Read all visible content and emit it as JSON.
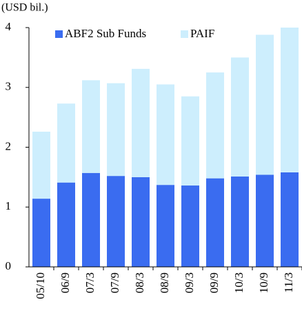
{
  "chart_data": {
    "type": "stacked_bar",
    "subtitle": "(USD bil.)",
    "categories": [
      "05/10",
      "06/9",
      "07/3",
      "07/9",
      "08/3",
      "08/9",
      "09/3",
      "09/9",
      "10/3",
      "10/9",
      "11/3"
    ],
    "series": [
      {
        "name": "ABF2 Sub Funds",
        "color": "#3a6cf0",
        "values": [
          1.14,
          1.41,
          1.57,
          1.52,
          1.5,
          1.37,
          1.36,
          1.48,
          1.51,
          1.54,
          1.58
        ]
      },
      {
        "name": "PAIF",
        "color": "#cdeefd",
        "values": [
          1.12,
          1.32,
          1.55,
          1.55,
          1.81,
          1.68,
          1.49,
          1.77,
          1.99,
          2.34,
          2.42
        ]
      }
    ],
    "ylim": [
      0,
      4
    ],
    "yticks": [
      0,
      1,
      2,
      3,
      4
    ],
    "grid": false,
    "legend": "top"
  }
}
